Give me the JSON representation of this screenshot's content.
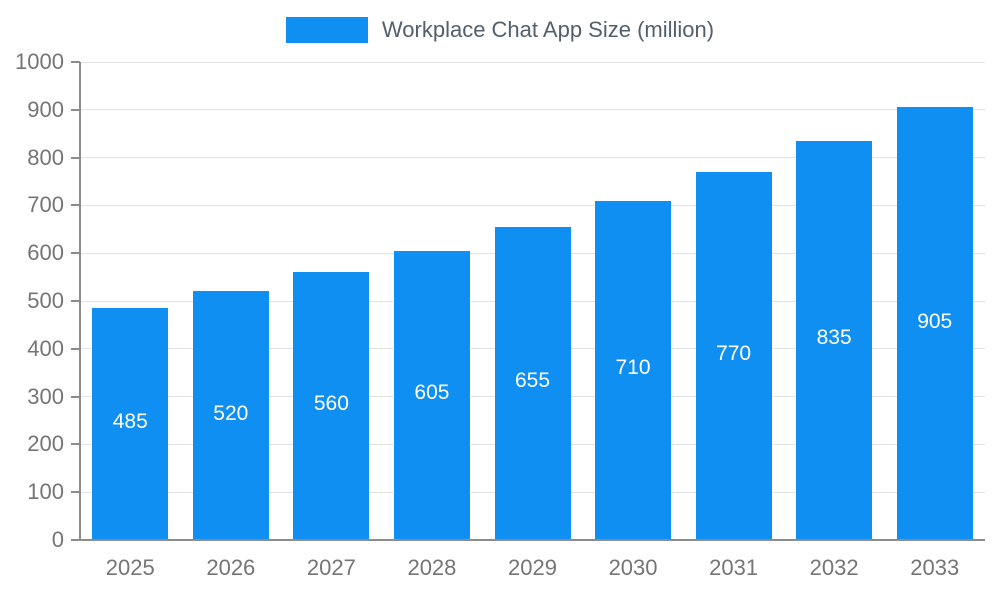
{
  "chart_data": {
    "type": "bar",
    "title": "Workplace Chat App Size (million)",
    "categories": [
      "2025",
      "2026",
      "2027",
      "2028",
      "2029",
      "2030",
      "2031",
      "2032",
      "2033"
    ],
    "values": [
      485,
      520,
      560,
      605,
      655,
      710,
      770,
      835,
      905
    ],
    "xlabel": "",
    "ylabel": "",
    "ylim": [
      0,
      1000
    ],
    "ytick_step": 100,
    "grid": true,
    "legend_position": "top",
    "colors": {
      "bar": "#0f8ff2",
      "value_label": "#ffffff",
      "axis_text": "#757575",
      "axis_line": "#8c8c8c",
      "gridline": "#e3e3e3",
      "legend_text": "#52606d",
      "background": "#ffffff"
    }
  }
}
